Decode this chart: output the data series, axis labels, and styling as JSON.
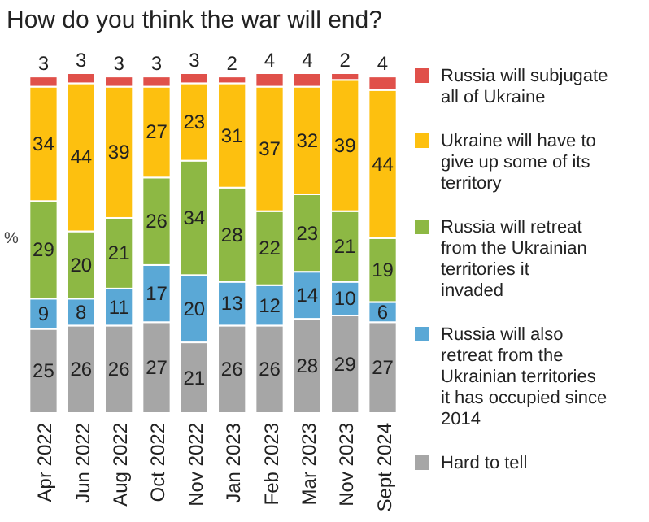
{
  "chart_data": {
    "type": "bar",
    "title": "How do you think the war will end?",
    "ylabel": "%",
    "stacked": true,
    "data_labels": true,
    "legend": "right",
    "categories": [
      "Apr 2022",
      "Jun 2022",
      "Aug 2022",
      "Oct 2022",
      "Nov 2022",
      "Jan 2023",
      "Feb 2023",
      "Mar 2023",
      "Nov 2023",
      "Sept 2024"
    ],
    "series": [
      {
        "name": "Hard to tell",
        "color": "#a6a6a6",
        "values": [
          25,
          26,
          26,
          27,
          21,
          26,
          26,
          28,
          29,
          27
        ]
      },
      {
        "name": "Russia will also retreat from the Ukrainian territories it has occupied since 2014",
        "color": "#5aa8d6",
        "values": [
          9,
          8,
          11,
          17,
          20,
          13,
          12,
          14,
          10,
          6
        ]
      },
      {
        "name": "Russia will retreat from the Ukrainian territories it invaded",
        "color": "#8db844",
        "values": [
          29,
          20,
          21,
          26,
          34,
          28,
          22,
          23,
          21,
          19
        ]
      },
      {
        "name": "Ukraine will have to give up some of its territory",
        "color": "#fdc00f",
        "values": [
          34,
          44,
          39,
          27,
          23,
          31,
          37,
          32,
          39,
          44
        ]
      },
      {
        "name": "Russia will subjugate all of Ukraine",
        "color": "#e0504a",
        "values": [
          3,
          3,
          3,
          3,
          3,
          2,
          4,
          4,
          2,
          4
        ]
      }
    ]
  }
}
